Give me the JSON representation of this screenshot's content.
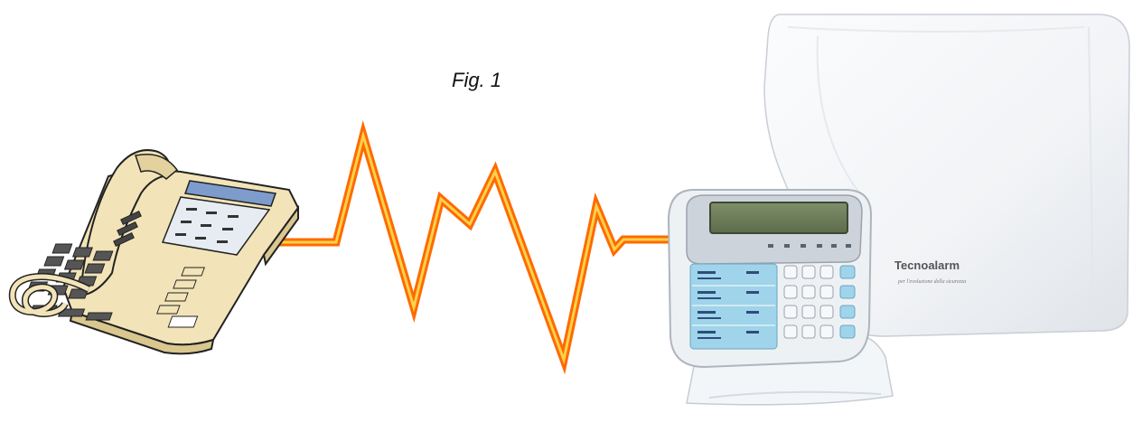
{
  "figure": {
    "caption": "Fig. 1"
  },
  "panel": {
    "brand": "Tecnoalarm",
    "tagline": "per l'evoluzione della sicurezza"
  },
  "colors": {
    "signal_outer": "#ff6a00",
    "signal_inner": "#ffd24a",
    "phone_body": "#f2e4b8",
    "keypad_blue": "#9fd4ea"
  }
}
